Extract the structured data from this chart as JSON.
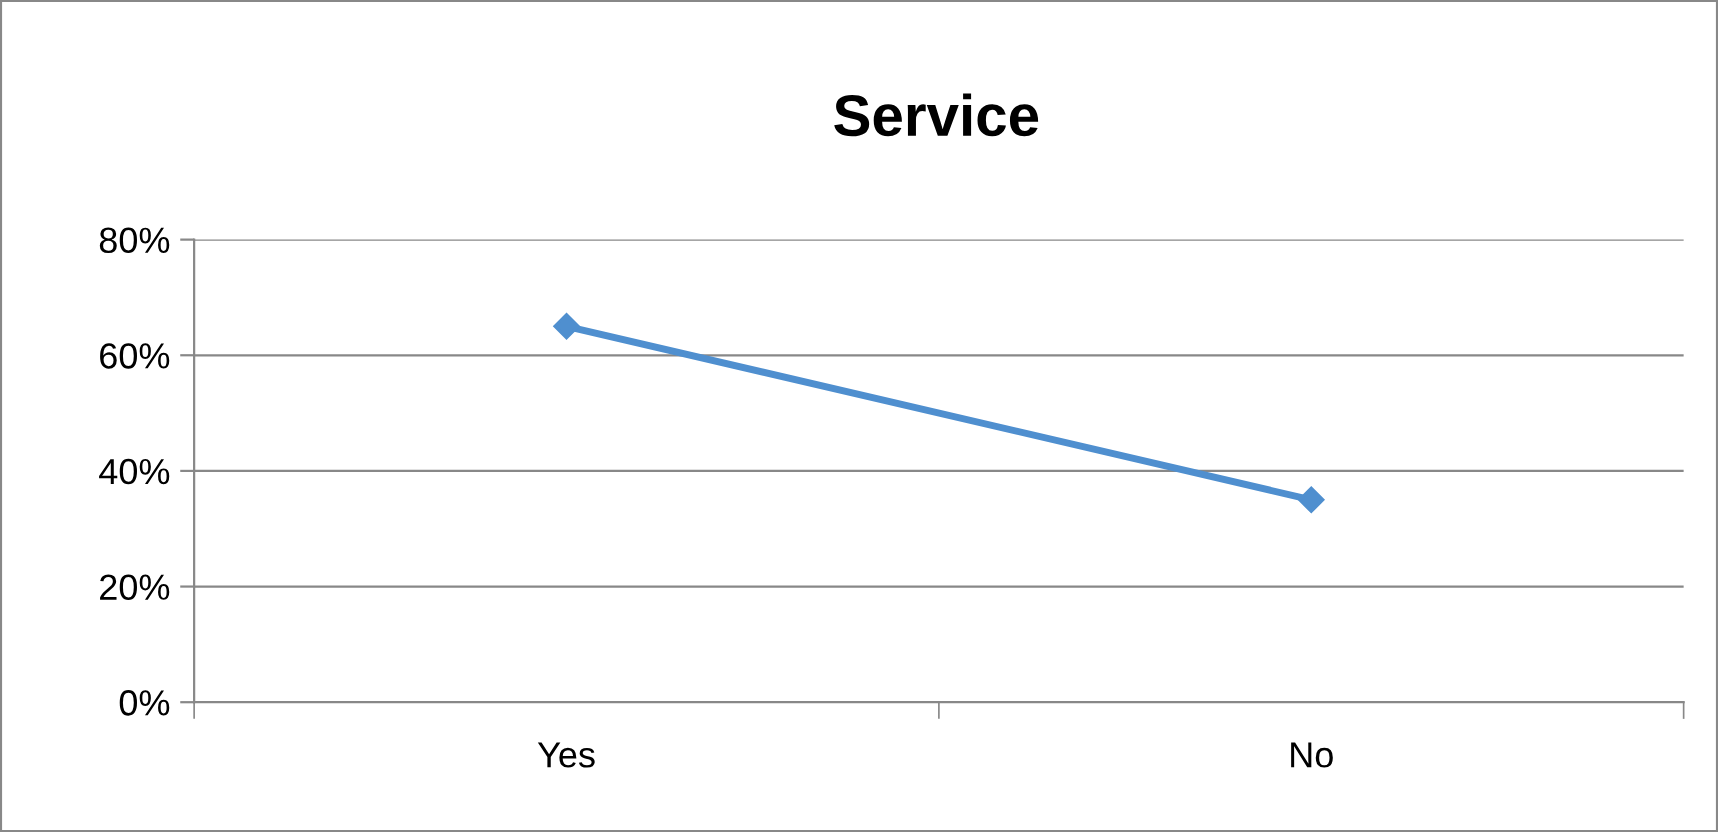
{
  "chart_data": {
    "type": "line",
    "title": "Service",
    "categories": [
      "Yes",
      "No"
    ],
    "series": [
      {
        "color": "#4f8fcf",
        "values": [
          65,
          35
        ]
      }
    ],
    "ylim": [
      0,
      80
    ],
    "yticks": [
      {
        "value": 0,
        "label": "0%"
      },
      {
        "value": 20,
        "label": "20%"
      },
      {
        "value": 40,
        "label": "40%"
      },
      {
        "value": 60,
        "label": "60%"
      },
      {
        "value": 80,
        "label": "80%"
      }
    ],
    "grid": "y",
    "marker": "diamond",
    "line_style": "solid",
    "legend": false
  }
}
